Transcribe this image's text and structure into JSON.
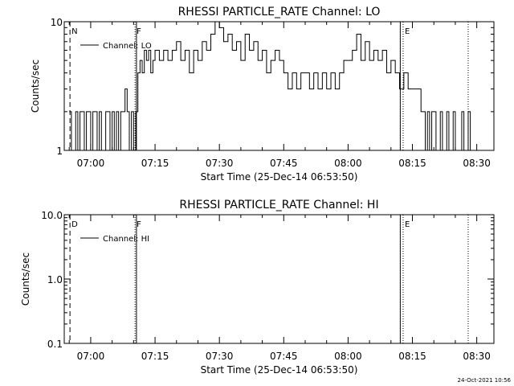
{
  "footer": {
    "date_stamp": "24-Oct-2021 10:56"
  },
  "chart_data": [
    {
      "type": "line",
      "title": "RHESSI PARTICLE_RATE Channel: LO",
      "xlabel": "Start Time (25-Dec-14 06:53:50)",
      "ylabel": "Counts/sec",
      "yscale": "log",
      "xlim": [
        "06:53:50",
        "08:34:00"
      ],
      "ylim": [
        1,
        10
      ],
      "x_ticks": [
        "07:00",
        "07:15",
        "07:30",
        "07:45",
        "08:00",
        "08:15",
        "08:30"
      ],
      "y_ticks": [
        "1",
        "10"
      ],
      "grid": false,
      "legend": "top-left",
      "series": [
        {
          "name": "Channel: LO",
          "x": [
            "06:55:00",
            "06:55:30",
            "06:56:00",
            "06:56:30",
            "06:57:00",
            "06:57:30",
            "06:58:00",
            "06:58:30",
            "06:59:00",
            "06:59:30",
            "07:00:00",
            "07:00:30",
            "07:01:00",
            "07:01:30",
            "07:02:00",
            "07:02:30",
            "07:03:00",
            "07:03:30",
            "07:04:00",
            "07:04:30",
            "07:05:00",
            "07:05:30",
            "07:06:00",
            "07:06:30",
            "07:07:00",
            "07:07:30",
            "07:08:00",
            "07:08:30",
            "07:09:00",
            "07:09:30",
            "07:10:00",
            "07:10:30",
            "07:11:00",
            "07:11:30",
            "07:12:00",
            "07:12:30",
            "07:13:00",
            "07:13:30",
            "07:14:00",
            "07:14:30",
            "07:15:00",
            "07:16:00",
            "07:17:00",
            "07:18:00",
            "07:19:00",
            "07:20:00",
            "07:21:00",
            "07:22:00",
            "07:23:00",
            "07:24:00",
            "07:25:00",
            "07:26:00",
            "07:27:00",
            "07:28:00",
            "07:29:00",
            "07:30:00",
            "07:31:00",
            "07:32:00",
            "07:33:00",
            "07:34:00",
            "07:35:00",
            "07:36:00",
            "07:37:00",
            "07:38:00",
            "07:39:00",
            "07:40:00",
            "07:41:00",
            "07:42:00",
            "07:43:00",
            "07:44:00",
            "07:45:00",
            "07:46:00",
            "07:47:00",
            "07:48:00",
            "07:49:00",
            "07:50:00",
            "07:51:00",
            "07:52:00",
            "07:53:00",
            "07:54:00",
            "07:55:00",
            "07:56:00",
            "07:57:00",
            "07:58:00",
            "07:59:00",
            "08:00:00",
            "08:01:00",
            "08:02:00",
            "08:03:00",
            "08:04:00",
            "08:05:00",
            "08:06:00",
            "08:07:00",
            "08:08:00",
            "08:09:00",
            "08:10:00",
            "08:11:00",
            "08:12:00",
            "08:13:00",
            "08:14:00",
            "08:15:00",
            "08:16:00",
            "08:16:30",
            "08:17:00",
            "08:17:30",
            "08:18:00",
            "08:18:30",
            "08:19:00",
            "08:19:30",
            "08:20:00",
            "08:20:30",
            "08:21:00",
            "08:21:30",
            "08:22:00",
            "08:22:30",
            "08:23:00",
            "08:23:30",
            "08:24:00",
            "08:24:30",
            "08:25:00",
            "08:25:30",
            "08:26:00",
            "08:26:30",
            "08:27:00",
            "08:27:30",
            "08:28:00",
            "08:28:30",
            "08:29:00",
            "08:29:30",
            "08:30:00",
            "08:31:00"
          ],
          "values": [
            2,
            1,
            1,
            2,
            1,
            2,
            2,
            1,
            2,
            2,
            1,
            2,
            2,
            1,
            2,
            1,
            1,
            2,
            2,
            1,
            2,
            1,
            2,
            1,
            2,
            2,
            3,
            2,
            1,
            2,
            1,
            2,
            4,
            5,
            4,
            6,
            5,
            6,
            4,
            5,
            6,
            5,
            6,
            5,
            6,
            7,
            5,
            6,
            4,
            6,
            5,
            7,
            6,
            8,
            10,
            9,
            7,
            8,
            6,
            7,
            5,
            8,
            6,
            7,
            5,
            6,
            4,
            5,
            6,
            5,
            4,
            3,
            4,
            3,
            4,
            4,
            3,
            4,
            3,
            4,
            3,
            4,
            3,
            4,
            5,
            5,
            6,
            8,
            5,
            7,
            5,
            6,
            5,
            6,
            4,
            5,
            4,
            3,
            4,
            3,
            3,
            3,
            3,
            2,
            2,
            1,
            2,
            1,
            2,
            2,
            1,
            1,
            2,
            1,
            1,
            2,
            1,
            1,
            2,
            1,
            1,
            1,
            2,
            1,
            1,
            2,
            1,
            1,
            1,
            1,
            1
          ]
        }
      ],
      "markers": [
        {
          "label": "N",
          "time": "06:55:10",
          "style": "dashed"
        },
        {
          "label": "F",
          "time": "07:10:20",
          "style": "dotted"
        },
        {
          "label": "",
          "time": "07:10:40",
          "style": "solid"
        },
        {
          "label": "",
          "time": "08:12:10",
          "style": "solid"
        },
        {
          "label": "E",
          "time": "08:12:50",
          "style": "dotted"
        },
        {
          "label": "",
          "time": "08:28:00",
          "style": "dotted"
        }
      ]
    },
    {
      "type": "line",
      "title": "RHESSI PARTICLE_RATE Channel: HI",
      "xlabel": "Start Time (25-Dec-14 06:53:50)",
      "ylabel": "Counts/sec",
      "yscale": "log",
      "xlim": [
        "06:53:50",
        "08:34:00"
      ],
      "ylim": [
        0.1,
        10
      ],
      "x_ticks": [
        "07:00",
        "07:15",
        "07:30",
        "07:45",
        "08:00",
        "08:15",
        "08:30"
      ],
      "y_ticks": [
        "0.1",
        "1.0",
        "10.0"
      ],
      "grid": false,
      "legend": "top-left",
      "series": [
        {
          "name": "Channel: HI",
          "x": [],
          "values": []
        }
      ],
      "markers": [
        {
          "label": "D",
          "time": "06:55:10",
          "style": "dashed"
        },
        {
          "label": "F",
          "time": "07:10:20",
          "style": "dotted"
        },
        {
          "label": "",
          "time": "07:10:40",
          "style": "solid"
        },
        {
          "label": "",
          "time": "08:12:10",
          "style": "solid"
        },
        {
          "label": "E",
          "time": "08:12:50",
          "style": "dotted"
        },
        {
          "label": "",
          "time": "08:28:00",
          "style": "dotted"
        }
      ]
    }
  ]
}
